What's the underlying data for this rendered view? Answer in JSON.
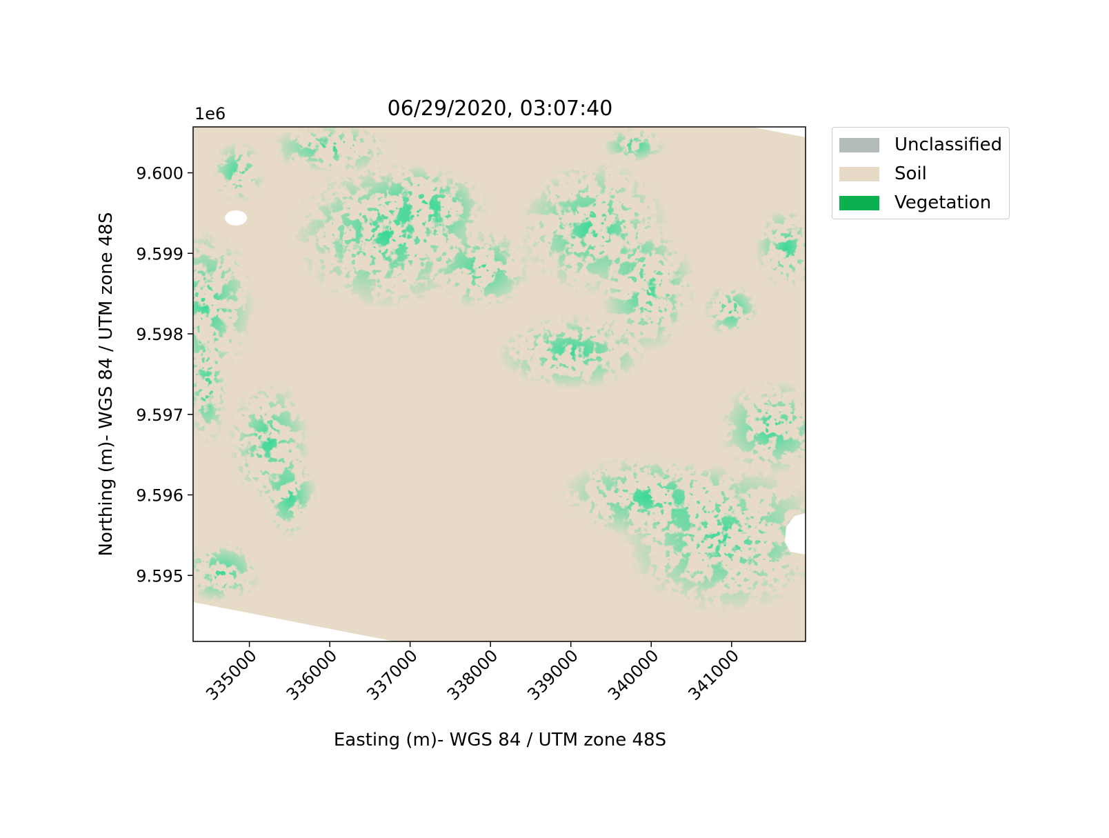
{
  "title": "06/29/2020, 03:07:40",
  "offset_label": "1e6",
  "x_axis": {
    "label": "Easting (m)- WGS 84 / UTM zone 48S",
    "ticks": [
      "335000",
      "336000",
      "337000",
      "338000",
      "339000",
      "340000",
      "341000"
    ],
    "tick_values": [
      335000,
      336000,
      337000,
      338000,
      339000,
      340000,
      341000
    ],
    "range": [
      334300,
      341920
    ]
  },
  "y_axis": {
    "label": "Northing (m)- WGS 84 / UTM zone 48S",
    "ticks": [
      "9.600",
      "9.599",
      "9.598",
      "9.597",
      "9.596",
      "9.595"
    ],
    "tick_values": [
      9600000,
      9599000,
      9598000,
      9597000,
      9596000,
      9595000
    ],
    "range": [
      9594180,
      9600570
    ]
  },
  "legend": {
    "placement": "outside-top-right",
    "items": [
      {
        "label": "Unclassified",
        "color": "#b3bbbb"
      },
      {
        "label": "Soil",
        "color": "#e7dbc7"
      },
      {
        "label": "Vegetation",
        "color": "#0bb04f"
      }
    ]
  },
  "colors": {
    "soil": "#e7dbc7",
    "vegetation": "#0bb04f",
    "nodata": "#ffffff"
  }
}
